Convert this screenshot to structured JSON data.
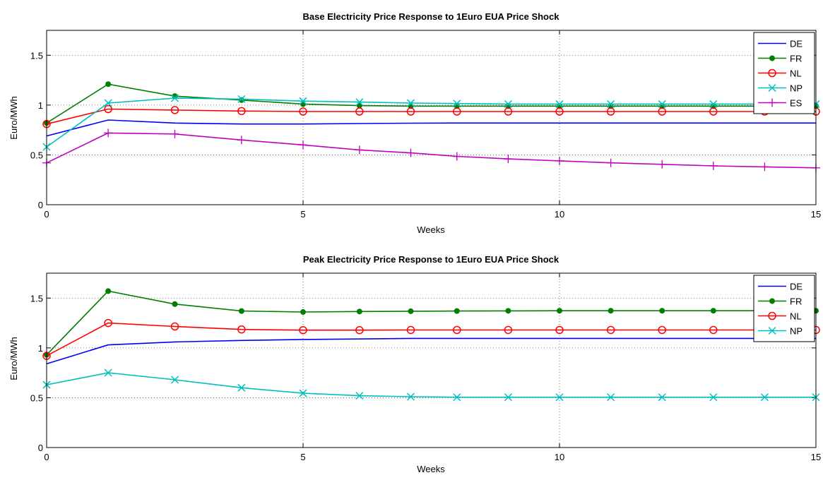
{
  "chart_data": [
    {
      "type": "line",
      "title": "Base Electricity Price Response to 1Euro EUA Price Shock",
      "xlabel": "Weeks",
      "ylabel": "Euro/MWh",
      "xlim": [
        0,
        15
      ],
      "ylim": [
        0,
        1.75
      ],
      "xticks": [
        "0",
        "5",
        "10",
        "15"
      ],
      "yticks": [
        "0",
        "0.5",
        "1",
        "1.5"
      ],
      "grid": true,
      "legend": "top-right",
      "x": [
        0,
        1.2,
        2.5,
        3.8,
        5,
        6.1,
        7.1,
        8,
        9,
        10,
        11,
        12,
        13,
        14,
        15
      ],
      "series": [
        {
          "name": "DE",
          "color": "#0000ff",
          "marker": "none",
          "values": [
            0.69,
            0.85,
            0.82,
            0.81,
            0.81,
            0.815,
            0.818,
            0.82,
            0.82,
            0.82,
            0.82,
            0.82,
            0.82,
            0.82,
            0.82
          ]
        },
        {
          "name": "FR",
          "color": "#007f00",
          "marker": "dot",
          "values": [
            0.82,
            1.21,
            1.09,
            1.05,
            1.01,
            0.995,
            0.99,
            0.99,
            0.99,
            0.99,
            0.99,
            0.99,
            0.99,
            0.99,
            0.99
          ]
        },
        {
          "name": "NL",
          "color": "#ff0000",
          "marker": "circle",
          "values": [
            0.81,
            0.96,
            0.95,
            0.94,
            0.935,
            0.935,
            0.935,
            0.935,
            0.935,
            0.935,
            0.935,
            0.935,
            0.935,
            0.935,
            0.935
          ]
        },
        {
          "name": "NP",
          "color": "#00bfbf",
          "marker": "x",
          "values": [
            0.58,
            1.02,
            1.07,
            1.06,
            1.04,
            1.03,
            1.02,
            1.015,
            1.01,
            1.01,
            1.01,
            1.01,
            1.01,
            1.01,
            1.01
          ]
        },
        {
          "name": "ES",
          "color": "#bf00bf",
          "marker": "plus",
          "values": [
            0.42,
            0.72,
            0.71,
            0.65,
            0.6,
            0.55,
            0.52,
            0.485,
            0.46,
            0.44,
            0.42,
            0.405,
            0.39,
            0.38,
            0.37
          ]
        }
      ]
    },
    {
      "type": "line",
      "title": "Peak Electricity Price Response to 1Euro EUA Price Shock",
      "xlabel": "Weeks",
      "ylabel": "Euro/MWh",
      "xlim": [
        0,
        15
      ],
      "ylim": [
        0,
        1.75
      ],
      "xticks": [
        "0",
        "5",
        "10",
        "15"
      ],
      "yticks": [
        "0",
        "0.5",
        "1",
        "1.5"
      ],
      "grid": true,
      "legend": "top-right",
      "x": [
        0,
        1.2,
        2.5,
        3.8,
        5,
        6.1,
        7.1,
        8,
        9,
        10,
        11,
        12,
        13,
        14,
        15
      ],
      "series": [
        {
          "name": "DE",
          "color": "#0000ff",
          "marker": "none",
          "values": [
            0.84,
            1.03,
            1.06,
            1.075,
            1.085,
            1.09,
            1.095,
            1.095,
            1.095,
            1.095,
            1.095,
            1.095,
            1.095,
            1.095,
            1.095
          ]
        },
        {
          "name": "FR",
          "color": "#007f00",
          "marker": "dot",
          "values": [
            0.93,
            1.57,
            1.44,
            1.37,
            1.36,
            1.365,
            1.368,
            1.37,
            1.372,
            1.373,
            1.373,
            1.373,
            1.373,
            1.373,
            1.373
          ]
        },
        {
          "name": "NL",
          "color": "#ff0000",
          "marker": "circle",
          "values": [
            0.92,
            1.25,
            1.215,
            1.185,
            1.178,
            1.178,
            1.18,
            1.18,
            1.18,
            1.18,
            1.18,
            1.18,
            1.18,
            1.18,
            1.18
          ]
        },
        {
          "name": "NP",
          "color": "#00bfbf",
          "marker": "x",
          "values": [
            0.63,
            0.75,
            0.68,
            0.6,
            0.545,
            0.52,
            0.51,
            0.505,
            0.505,
            0.505,
            0.505,
            0.505,
            0.505,
            0.505,
            0.505
          ]
        }
      ]
    }
  ]
}
